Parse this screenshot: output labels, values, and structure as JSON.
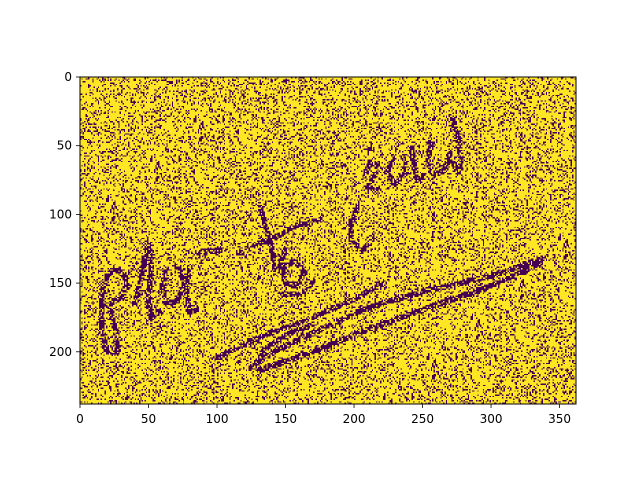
{
  "chart_data": {
    "type": "heatmap",
    "title": "",
    "xlabel": "",
    "ylabel": "",
    "xlim": [
      0,
      362
    ],
    "ylim": [
      238,
      0
    ],
    "x_ticks": [
      0,
      50,
      100,
      150,
      200,
      250,
      300,
      350
    ],
    "y_ticks": [
      0,
      50,
      100,
      150,
      200
    ],
    "x_tick_labels": [
      "0",
      "50",
      "100",
      "150",
      "200",
      "250",
      "300",
      "350"
    ],
    "y_tick_labels": [
      "0",
      "50",
      "100",
      "150",
      "200"
    ],
    "colormap": "viridis",
    "value_range": [
      0,
      1
    ],
    "foreground_value": 0,
    "background_value": 1,
    "noise_fraction": 0.22,
    "grid": false,
    "content": "binarized handwritten ink with random salt-and-pepper noise",
    "strokes": [
      [
        [
          20,
          200
        ],
        [
          16,
          185
        ],
        [
          16,
          165
        ],
        [
          18,
          148
        ],
        [
          24,
          140
        ],
        [
          32,
          142
        ],
        [
          34,
          152
        ],
        [
          28,
          162
        ],
        [
          20,
          166
        ]
      ],
      [
        [
          22,
          170
        ],
        [
          26,
          185
        ],
        [
          28,
          198
        ],
        [
          26,
          200
        ]
      ],
      [
        [
          40,
          165
        ],
        [
          44,
          150
        ],
        [
          48,
          130
        ],
        [
          50,
          122
        ],
        [
          52,
          142
        ],
        [
          50,
          162
        ],
        [
          52,
          176
        ],
        [
          58,
          170
        ]
      ],
      [
        [
          64,
          140
        ],
        [
          60,
          152
        ],
        [
          62,
          164
        ],
        [
          70,
          164
        ],
        [
          76,
          152
        ],
        [
          74,
          140
        ],
        [
          70,
          138
        ]
      ],
      [
        [
          80,
          138
        ],
        [
          78,
          155
        ],
        [
          80,
          172
        ],
        [
          84,
          170
        ]
      ],
      [
        [
          86,
          128
        ],
        [
          94,
          126
        ],
        [
          100,
          128
        ]
      ],
      [
        [
          132,
          95
        ],
        [
          136,
          110
        ],
        [
          140,
          125
        ],
        [
          142,
          140
        ]
      ],
      [
        [
          128,
          122
        ],
        [
          140,
          118
        ],
        [
          158,
          108
        ],
        [
          176,
          104
        ]
      ],
      [
        [
          150,
          125
        ],
        [
          146,
          138
        ],
        [
          150,
          150
        ],
        [
          158,
          152
        ],
        [
          164,
          142
        ],
        [
          156,
          134
        ],
        [
          150,
          138
        ]
      ],
      [
        [
          148,
          158
        ],
        [
          160,
          158
        ],
        [
          170,
          150
        ]
      ],
      [
        [
          202,
          95
        ],
        [
          198,
          108
        ],
        [
          198,
          120
        ],
        [
          206,
          126
        ],
        [
          214,
          118
        ]
      ],
      [
        [
          208,
          72
        ],
        [
          212,
          62
        ],
        [
          218,
          66
        ],
        [
          214,
          74
        ],
        [
          210,
          80
        ],
        [
          218,
          82
        ]
      ],
      [
        [
          228,
          58
        ],
        [
          224,
          70
        ],
        [
          230,
          78
        ],
        [
          238,
          70
        ],
        [
          236,
          58
        ]
      ],
      [
        [
          242,
          52
        ],
        [
          244,
          64
        ],
        [
          246,
          76
        ],
        [
          250,
          72
        ]
      ],
      [
        [
          256,
          48
        ],
        [
          254,
          62
        ],
        [
          258,
          72
        ],
        [
          266,
          68
        ],
        [
          270,
          56
        ]
      ],
      [
        [
          272,
          30
        ],
        [
          276,
          45
        ],
        [
          278,
          60
        ],
        [
          276,
          70
        ],
        [
          272,
          62
        ]
      ],
      [
        [
          98,
          205
        ],
        [
          130,
          190
        ],
        [
          170,
          175
        ],
        [
          200,
          162
        ],
        [
          222,
          150
        ]
      ],
      [
        [
          124,
          212
        ],
        [
          145,
          198
        ],
        [
          175,
          184
        ],
        [
          210,
          168
        ],
        [
          255,
          155
        ],
        [
          300,
          145
        ],
        [
          338,
          132
        ]
      ],
      [
        [
          130,
          214
        ],
        [
          170,
          200
        ],
        [
          215,
          182
        ],
        [
          260,
          166
        ],
        [
          300,
          152
        ],
        [
          336,
          136
        ]
      ],
      [
        [
          128,
          210
        ],
        [
          135,
          198
        ],
        [
          150,
          188
        ],
        [
          170,
          180
        ]
      ]
    ],
    "dots": [
      [
        116,
        128
      ],
      [
        120,
        130
      ],
      [
        102,
        126
      ],
      [
        186,
        66
      ],
      [
        192,
        64
      ],
      [
        182,
        80
      ],
      [
        212,
        52
      ]
    ],
    "colors": {
      "low": "#440154",
      "high": "#fde725"
    }
  }
}
